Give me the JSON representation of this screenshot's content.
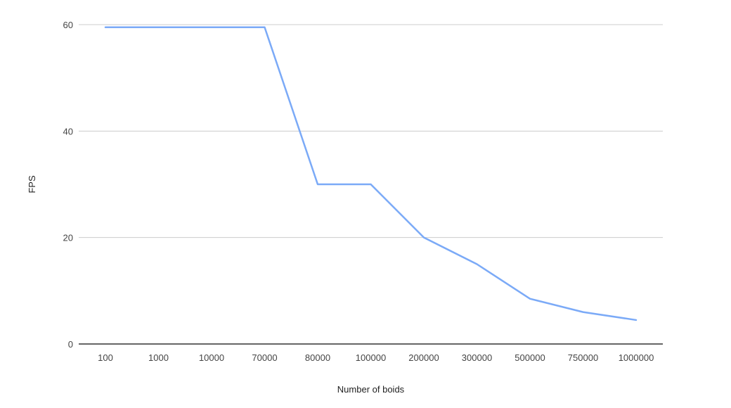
{
  "chart_data": {
    "type": "line",
    "title": "",
    "xlabel": "Number of boids",
    "ylabel": "FPS",
    "categories": [
      "100",
      "1000",
      "10000",
      "70000",
      "80000",
      "100000",
      "200000",
      "300000",
      "500000",
      "750000",
      "1000000"
    ],
    "series": [
      {
        "values": [
          59.5,
          59.5,
          59.5,
          59.5,
          30,
          30,
          20,
          15,
          8.5,
          6,
          4.5
        ],
        "color": "#7baaf7"
      }
    ],
    "ylim": [
      0,
      60
    ],
    "yticks": [
      0,
      20,
      40,
      60
    ],
    "grid": true,
    "legend": "none"
  }
}
